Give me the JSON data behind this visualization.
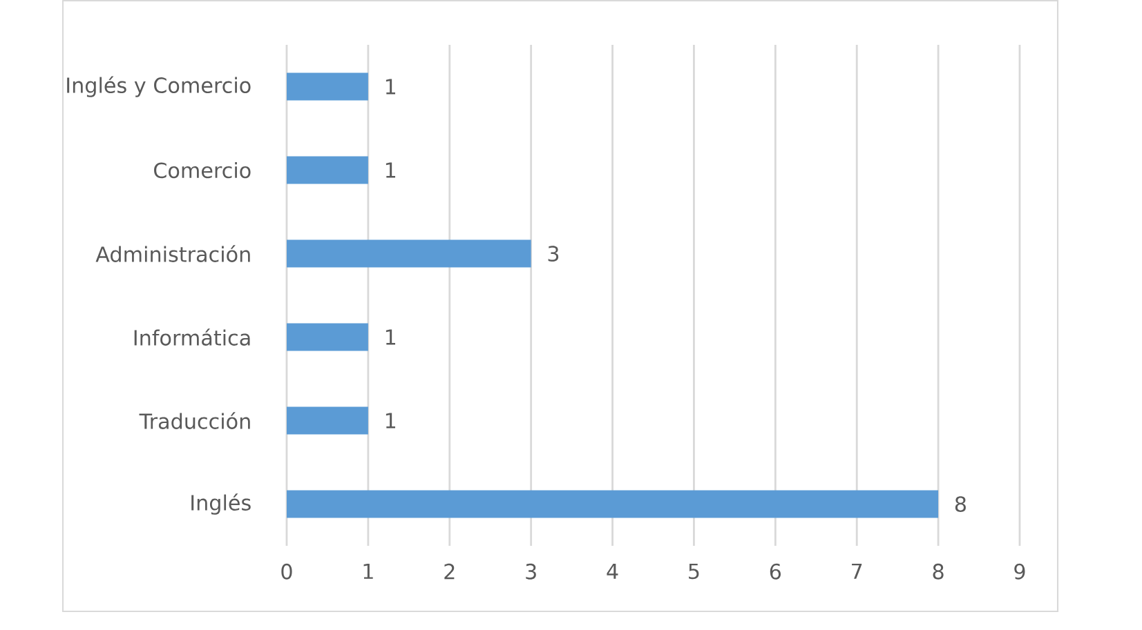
{
  "chart_data": {
    "type": "bar",
    "orientation": "horizontal",
    "categories": [
      "Inglés y Comercio",
      "Comercio",
      "Administración",
      "Informática",
      "Traducción",
      "Inglés"
    ],
    "values": [
      1,
      1,
      3,
      1,
      1,
      8
    ],
    "color": "#5b9bd5",
    "xlim": [
      0,
      9
    ],
    "xticks": [
      0,
      1,
      2,
      3,
      4,
      5,
      6,
      7,
      8,
      9
    ],
    "grid": "x",
    "data_labels": true
  }
}
